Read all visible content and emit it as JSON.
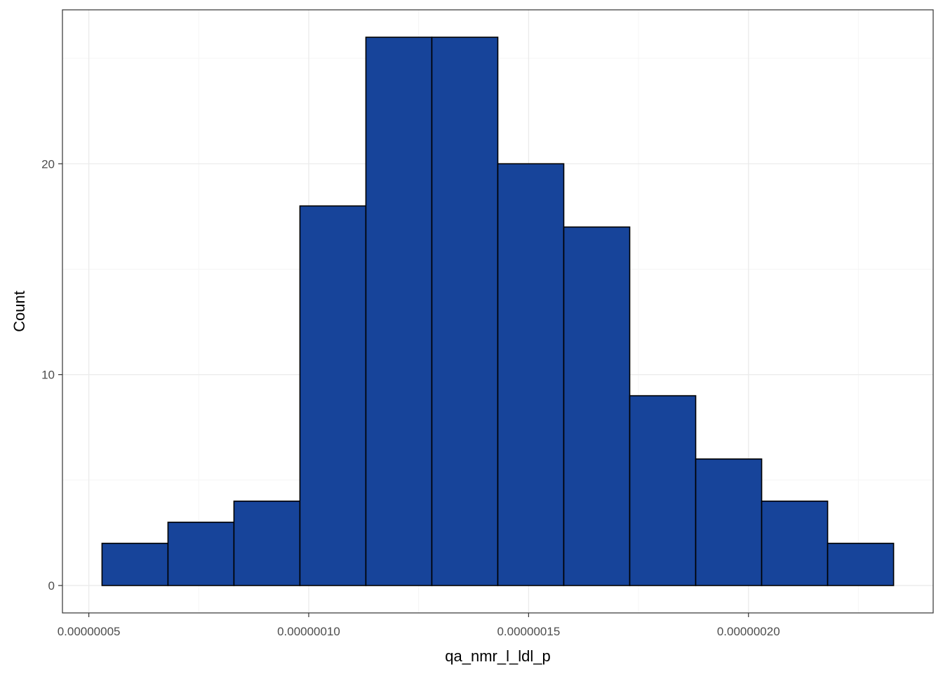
{
  "chart_data": {
    "type": "bar",
    "subtype": "histogram",
    "xlabel": "qa_nmr_l_ldl_p",
    "ylabel": "Count",
    "bins": [
      {
        "x0": 5.3e-08,
        "x1": 6.8e-08,
        "count": 2
      },
      {
        "x0": 6.8e-08,
        "x1": 8.3e-08,
        "count": 3
      },
      {
        "x0": 8.3e-08,
        "x1": 9.8e-08,
        "count": 4
      },
      {
        "x0": 9.8e-08,
        "x1": 1.13e-07,
        "count": 18
      },
      {
        "x0": 1.13e-07,
        "x1": 1.28e-07,
        "count": 26
      },
      {
        "x0": 1.28e-07,
        "x1": 1.43e-07,
        "count": 26
      },
      {
        "x0": 1.43e-07,
        "x1": 1.58e-07,
        "count": 20
      },
      {
        "x0": 1.58e-07,
        "x1": 1.73e-07,
        "count": 17
      },
      {
        "x0": 1.73e-07,
        "x1": 1.88e-07,
        "count": 9
      },
      {
        "x0": 1.88e-07,
        "x1": 2.03e-07,
        "count": 6
      },
      {
        "x0": 2.03e-07,
        "x1": 2.18e-07,
        "count": 4
      },
      {
        "x0": 2.18e-07,
        "x1": 2.33e-07,
        "count": 2
      }
    ],
    "x_ticks": [
      {
        "value": 5e-08,
        "label": "0.00000005"
      },
      {
        "value": 1e-07,
        "label": "0.00000010"
      },
      {
        "value": 1.5e-07,
        "label": "0.00000015"
      },
      {
        "value": 2e-07,
        "label": "0.00000020"
      }
    ],
    "y_ticks": [
      {
        "value": 0,
        "label": "0"
      },
      {
        "value": 10,
        "label": "10"
      },
      {
        "value": 20,
        "label": "20"
      }
    ],
    "xlim": [
      4.4e-08,
      2.42e-07
    ],
    "ylim": [
      -1.3,
      27.3
    ],
    "grid": true,
    "legend": "none",
    "colors": {
      "bar_fill": "#17449a",
      "bar_stroke": "#000000",
      "grid_major": "#ebebeb",
      "grid_minor": "#f5f5f5",
      "panel_border": "#333333"
    }
  }
}
